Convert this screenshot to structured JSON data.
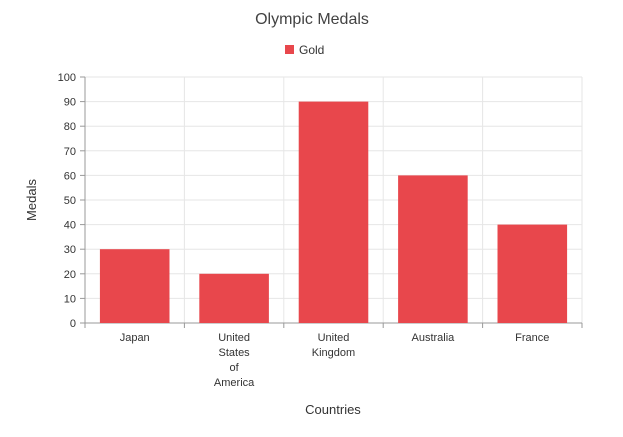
{
  "chart_data": {
    "type": "bar",
    "title": "Olympic Medals",
    "xlabel": "Countries",
    "ylabel": "Medals",
    "categories": [
      "Japan",
      "United States of America",
      "United Kingdom",
      "Australia",
      "France"
    ],
    "category_label_lines": [
      [
        "Japan"
      ],
      [
        "United",
        "States",
        "of",
        "America"
      ],
      [
        "United",
        "Kingdom"
      ],
      [
        "Australia"
      ],
      [
        "France"
      ]
    ],
    "series": [
      {
        "name": "Gold",
        "values": [
          30,
          20,
          90,
          60,
          40
        ],
        "color": "#e8474c"
      }
    ],
    "ylim": [
      0,
      100
    ],
    "ytick_step": 10,
    "grid": true,
    "legend_position": "top-center"
  },
  "colors": {
    "bar": "#e8474c",
    "grid": "#e6e6e6",
    "axis": "#999999",
    "title": "#424242",
    "tick_label": "#333333"
  }
}
